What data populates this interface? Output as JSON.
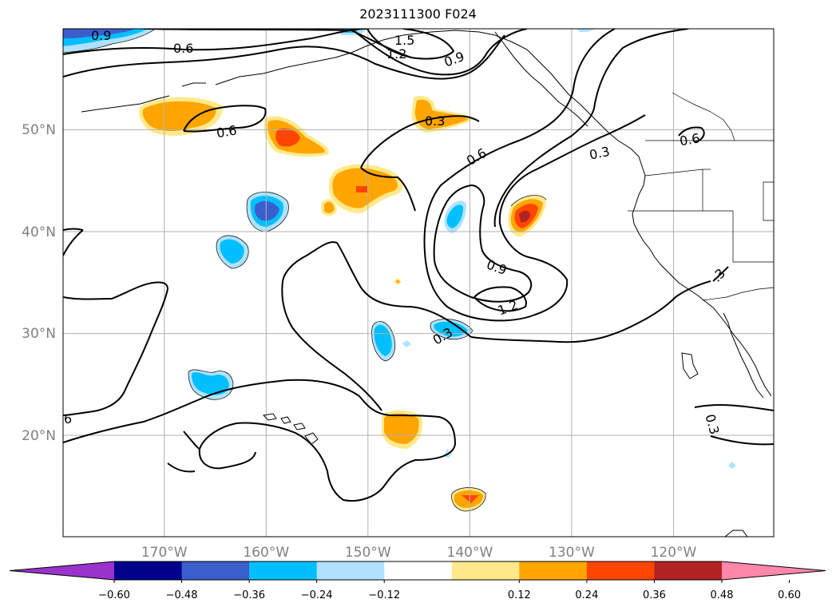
{
  "title": "2023111300 F024",
  "lat_labels": [
    {
      "text": "50°N",
      "lat": 50
    },
    {
      "text": "40°N",
      "lat": 40
    },
    {
      "text": "30°N",
      "lat": 30
    },
    {
      "text": "20°N",
      "lat": 20
    }
  ],
  "lon_labels": [
    {
      "text": "170°W",
      "lon": -170
    },
    {
      "text": "160°W",
      "lon": -160
    },
    {
      "text": "150°W",
      "lon": -150
    },
    {
      "text": "140°W",
      "lon": -140
    },
    {
      "text": "130°W",
      "lon": -130
    },
    {
      "text": "120°W",
      "lon": -120
    }
  ],
  "colorbar": {
    "levels": [
      "−0.60",
      "−0.48",
      "−0.36",
      "−0.24",
      "−0.12",
      "0.12",
      "0.24",
      "0.36",
      "0.48",
      "0.60"
    ],
    "colors": [
      "#9933cc",
      "#00008b",
      "#3a5fcd",
      "#00bfff",
      "#b0e2ff",
      "#ffffff",
      "#ffe98a",
      "#ffa500",
      "#ff4500",
      "#b22222",
      "#ff88aa"
    ]
  },
  "contour_labels": [
    "0.9",
    "1.5",
    "1.2",
    "0.9",
    "0.6",
    "0.6",
    "0.3",
    "0.6",
    "0.3",
    "0.6",
    "0.9",
    "1.2",
    "0.3",
    ".3",
    "0.3",
    "6"
  ]
}
